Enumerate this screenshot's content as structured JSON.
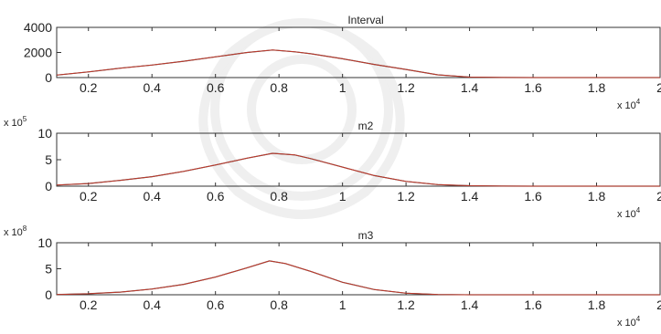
{
  "chart_data": [
    {
      "type": "line",
      "title": "Interval",
      "xlim": [
        0.1,
        2.0
      ],
      "ylim": [
        0,
        4000
      ],
      "xticks": [
        "0.2",
        "0.4",
        "0.6",
        "0.8",
        "1",
        "1.2",
        "1.4",
        "1.6",
        "1.8",
        "2"
      ],
      "yticks": [
        "0",
        "2000",
        "4000"
      ],
      "x_multiplier": "x 10",
      "x_exponent": "4",
      "y_multiplier": "",
      "y_exponent": "",
      "series": [
        {
          "color": "#c0392b",
          "x": [
            0.1,
            0.2,
            0.3,
            0.4,
            0.5,
            0.6,
            0.7,
            0.78,
            0.85,
            0.9,
            1.0,
            1.1,
            1.2,
            1.3,
            1.4,
            1.5,
            1.6,
            1.8,
            2.0
          ],
          "y": [
            200,
            450,
            750,
            1000,
            1300,
            1650,
            2000,
            2200,
            2050,
            1900,
            1500,
            1050,
            650,
            220,
            40,
            10,
            0,
            0,
            0
          ]
        }
      ]
    },
    {
      "type": "line",
      "title": "m2",
      "xlim": [
        0.1,
        2.0
      ],
      "ylim": [
        0,
        10
      ],
      "xticks": [
        "0.2",
        "0.4",
        "0.6",
        "0.8",
        "1",
        "1.2",
        "1.4",
        "1.6",
        "1.8",
        "2"
      ],
      "yticks": [
        "0",
        "5",
        "10"
      ],
      "x_multiplier": "x 10",
      "x_exponent": "4",
      "y_multiplier": "x 10",
      "y_exponent": "5",
      "series": [
        {
          "color": "#c0392b",
          "x": [
            0.1,
            0.2,
            0.3,
            0.4,
            0.5,
            0.6,
            0.7,
            0.78,
            0.85,
            0.9,
            1.0,
            1.1,
            1.2,
            1.3,
            1.4,
            1.5,
            1.6,
            1.8,
            2.0
          ],
          "y": [
            0.2,
            0.5,
            1.1,
            1.8,
            2.8,
            4.0,
            5.3,
            6.2,
            5.9,
            5.2,
            3.6,
            2.0,
            0.9,
            0.3,
            0.08,
            0.02,
            0,
            0,
            0
          ]
        }
      ]
    },
    {
      "type": "line",
      "title": "m3",
      "xlim": [
        0.1,
        2.0
      ],
      "ylim": [
        0,
        10
      ],
      "xticks": [
        "0.2",
        "0.4",
        "0.6",
        "0.8",
        "1",
        "1.2",
        "1.4",
        "1.6",
        "1.8",
        "2"
      ],
      "yticks": [
        "0",
        "5",
        "10"
      ],
      "x_multiplier": "x 10",
      "x_exponent": "4",
      "y_multiplier": "x 10",
      "y_exponent": "8",
      "series": [
        {
          "color": "#c0392b",
          "x": [
            0.1,
            0.2,
            0.3,
            0.4,
            0.5,
            0.6,
            0.7,
            0.77,
            0.82,
            0.9,
            1.0,
            1.1,
            1.2,
            1.3,
            1.4,
            1.6,
            1.8,
            2.0
          ],
          "y": [
            0.05,
            0.2,
            0.5,
            1.1,
            2.0,
            3.4,
            5.2,
            6.5,
            6.0,
            4.5,
            2.4,
            1.0,
            0.3,
            0.05,
            0,
            0,
            0,
            0
          ]
        }
      ]
    }
  ]
}
